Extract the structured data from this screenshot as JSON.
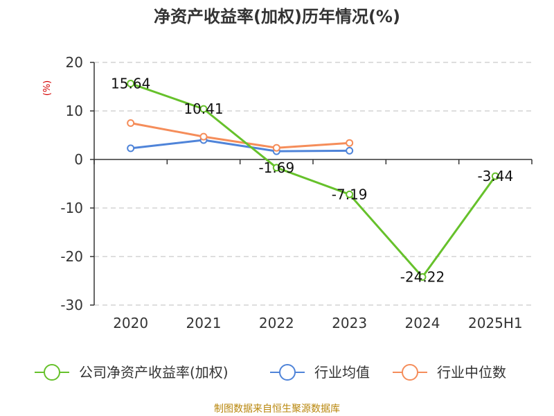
{
  "chart_data": {
    "type": "line",
    "title": "净资产收益率(加权)历年情况(%)",
    "ylabel": "(%)",
    "categories": [
      "2020",
      "2021",
      "2022",
      "2023",
      "2024",
      "2025H1"
    ],
    "ylim": [
      -30,
      20
    ],
    "yticks": [
      -30,
      -20,
      -10,
      0,
      10,
      20
    ],
    "grid": true,
    "legend_position": "bottom",
    "series": [
      {
        "name": "公司净资产收益率(加权)",
        "color": "#66c12b",
        "values": [
          15.64,
          10.41,
          -1.69,
          -7.19,
          -24.22,
          -3.44
        ],
        "labels": [
          "15.64",
          "10.41",
          "-1.69",
          "-7.19",
          "-24.22",
          "-3.44"
        ]
      },
      {
        "name": "行业均值",
        "color": "#4f84d9",
        "values": [
          2.3,
          4.0,
          1.7,
          1.8,
          null,
          null
        ]
      },
      {
        "name": "行业中位数",
        "color": "#f58d5a",
        "values": [
          7.5,
          4.7,
          2.4,
          3.4,
          null,
          null
        ]
      }
    ],
    "source": "制图数据来自恒生聚源数据库"
  }
}
